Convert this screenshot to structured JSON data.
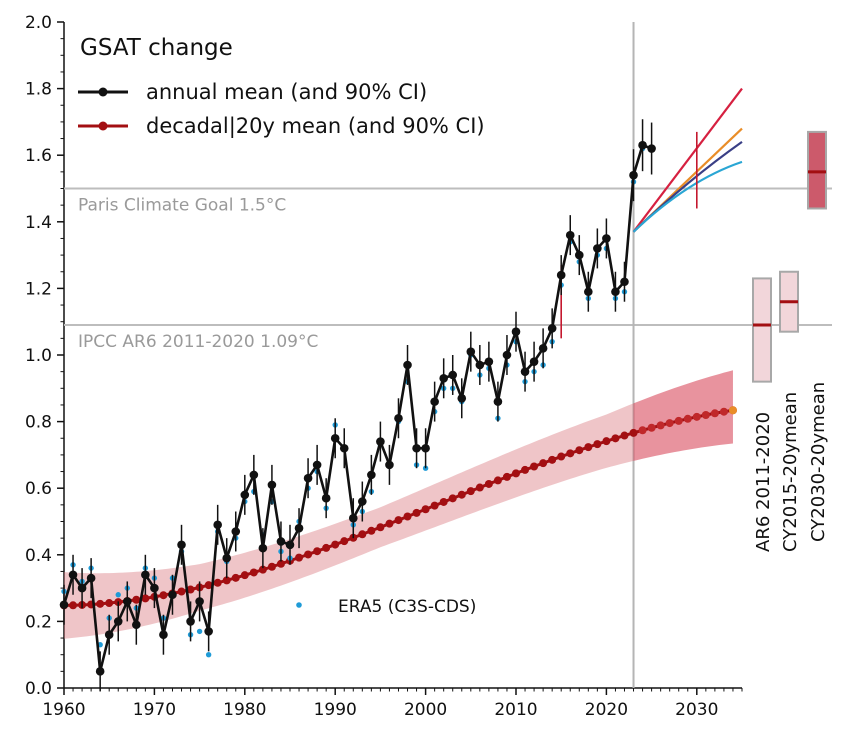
{
  "chart_data": {
    "type": "line",
    "title": "GSAT change",
    "xlim": [
      1960,
      2035
    ],
    "ylim": [
      0.0,
      2.0
    ],
    "x_ticks": [
      "1960",
      "1970",
      "1980",
      "1990",
      "2000",
      "2010",
      "2020",
      "2030"
    ],
    "y_ticks": [
      "0.0",
      "0.2",
      "0.4",
      "0.6",
      "0.8",
      "1.0",
      "1.2",
      "1.4",
      "1.6",
      "1.8",
      "2.0"
    ],
    "legend": {
      "title": "GSAT change",
      "annual_label": "annual mean (and 90% CI)",
      "decadal_label": "decadal|20y mean (and 90% CI)",
      "era5_label": "ERA5 (C3S-CDS)"
    },
    "reference_lines": [
      {
        "label": "Paris Climate Goal 1.5°C",
        "value": 1.5
      },
      {
        "label": "IPCC AR6 2011-2020 1.09°C",
        "value": 1.09
      }
    ],
    "current_year_marker": 2023,
    "annual_mean": {
      "x": [
        1960,
        1961,
        1962,
        1963,
        1964,
        1965,
        1966,
        1967,
        1968,
        1969,
        1970,
        1971,
        1972,
        1973,
        1974,
        1975,
        1976,
        1977,
        1978,
        1979,
        1980,
        1981,
        1982,
        1983,
        1984,
        1985,
        1986,
        1987,
        1988,
        1989,
        1990,
        1991,
        1992,
        1993,
        1994,
        1995,
        1996,
        1997,
        1998,
        1999,
        2000,
        2001,
        2002,
        2003,
        2004,
        2005,
        2006,
        2007,
        2008,
        2009,
        2010,
        2011,
        2012,
        2013,
        2014,
        2015,
        2016,
        2017,
        2018,
        2019,
        2020,
        2021,
        2022,
        2023,
        2024,
        2025
      ],
      "y": [
        0.25,
        0.34,
        0.3,
        0.33,
        0.05,
        0.16,
        0.2,
        0.26,
        0.19,
        0.34,
        0.3,
        0.16,
        0.28,
        0.43,
        0.2,
        0.26,
        0.17,
        0.49,
        0.39,
        0.47,
        0.58,
        0.64,
        0.42,
        0.61,
        0.44,
        0.43,
        0.48,
        0.63,
        0.67,
        0.57,
        0.75,
        0.72,
        0.51,
        0.56,
        0.64,
        0.74,
        0.67,
        0.81,
        0.97,
        0.72,
        0.72,
        0.86,
        0.93,
        0.94,
        0.87,
        1.01,
        0.97,
        0.98,
        0.86,
        1.0,
        1.07,
        0.95,
        0.98,
        1.02,
        1.08,
        1.24,
        1.36,
        1.3,
        1.19,
        1.32,
        1.35,
        1.19,
        1.22,
        1.54,
        1.63,
        1.62
      ],
      "ci": 0.06
    },
    "era5": {
      "x": [
        1960,
        1961,
        1962,
        1963,
        1964,
        1965,
        1966,
        1967,
        1968,
        1969,
        1970,
        1971,
        1972,
        1973,
        1974,
        1975,
        1976,
        1977,
        1978,
        1979,
        1980,
        1981,
        1982,
        1983,
        1984,
        1985,
        1986,
        1987,
        1988,
        1989,
        1990,
        1991,
        1992,
        1993,
        1994,
        1995,
        1996,
        1997,
        1998,
        1999,
        2000,
        2001,
        2002,
        2003,
        2004,
        2005,
        2006,
        2007,
        2008,
        2009,
        2010,
        2011,
        2012,
        2013,
        2014,
        2015,
        2016,
        2017,
        2018,
        2019,
        2020,
        2021,
        2022,
        2023,
        2024
      ],
      "y": [
        0.29,
        0.37,
        0.32,
        0.36,
        0.13,
        0.21,
        0.28,
        0.3,
        0.24,
        0.36,
        0.33,
        0.21,
        0.33,
        0.41,
        0.16,
        0.17,
        0.1,
        0.47,
        0.38,
        0.45,
        0.56,
        0.59,
        0.46,
        0.56,
        0.41,
        0.39,
        0.5,
        0.6,
        0.65,
        0.54,
        0.79,
        0.72,
        0.49,
        0.53,
        0.59,
        0.73,
        0.67,
        0.8,
        0.92,
        0.67,
        0.66,
        0.83,
        0.9,
        0.9,
        0.86,
        1.0,
        0.94,
        0.96,
        0.81,
        0.97,
        1.04,
        0.92,
        0.95,
        0.97,
        1.04,
        1.21,
        1.34,
        1.28,
        1.17,
        1.3,
        1.32,
        1.17,
        1.19,
        1.52,
        1.62
      ]
    },
    "decadal_mean": {
      "x_start": 1960,
      "x_end": 2034,
      "poly": [
        0.248,
        0.00018,
        0.00026,
        -2.1e-06
      ],
      "ci_lower_offset": [
        0.1,
        0.07,
        0.06,
        0.08,
        0.1
      ],
      "ci_upper_offset": [
        0.1,
        0.07,
        0.06,
        0.08,
        0.12
      ],
      "ci_nodes_x": [
        1960,
        1975,
        1995,
        2020,
        2034
      ]
    },
    "projections": [
      {
        "name": "upper",
        "color": "#d62040",
        "start": [
          2023,
          1.37
        ],
        "end": [
          2035,
          1.8
        ]
      },
      {
        "name": "central",
        "color": "#e98d28",
        "start": [
          2023,
          1.37
        ],
        "end": [
          2035,
          1.68
        ]
      },
      {
        "name": "dark",
        "color": "#3a3f86",
        "start": [
          2023,
          1.37
        ],
        "end": [
          2035,
          1.64
        ]
      },
      {
        "name": "light-blue",
        "color": "#2aa6d4",
        "start": [
          2023,
          1.37
        ],
        "end": [
          2035,
          1.58
        ]
      }
    ],
    "side_bars": [
      {
        "label": "AR6 2011-2020",
        "mean": 1.09,
        "low": 0.92,
        "high": 1.23
      },
      {
        "label": "CY2015-20ymean",
        "mean": 1.16,
        "low": 1.07,
        "high": 1.25
      },
      {
        "label": "CY2030-20ymean",
        "mean": 1.55,
        "low": 1.44,
        "high": 1.67
      }
    ]
  }
}
